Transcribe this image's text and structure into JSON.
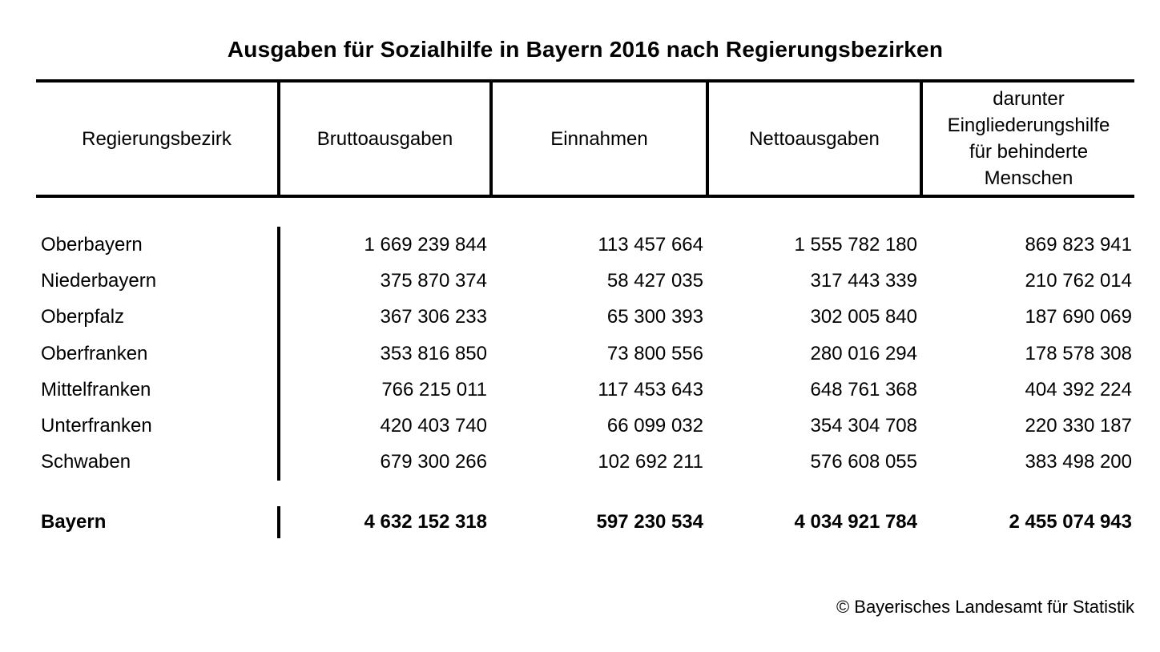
{
  "title": "Ausgaben für Sozialhilfe in Bayern 2016 nach Regierungsbezirken",
  "table": {
    "columns": [
      "Regierungsbezirk",
      "Bruttoausgaben",
      "Einnahmen",
      "Nettoausgaben",
      "darunter\nEingliederungshilfe\nfür behinderte\nMenschen"
    ],
    "rows": [
      {
        "region": "Oberbayern",
        "brutto": "1 669 239 844",
        "einnahmen": "113 457 664",
        "netto": "1 555 782 180",
        "eingliederung": "869 823 941"
      },
      {
        "region": "Niederbayern",
        "brutto": "375 870 374",
        "einnahmen": "58 427 035",
        "netto": "317 443 339",
        "eingliederung": "210 762 014"
      },
      {
        "region": "Oberpfalz",
        "brutto": "367 306 233",
        "einnahmen": "65 300 393",
        "netto": "302 005 840",
        "eingliederung": "187 690 069"
      },
      {
        "region": "Oberfranken",
        "brutto": "353 816 850",
        "einnahmen": "73 800 556",
        "netto": "280 016 294",
        "eingliederung": "178 578 308"
      },
      {
        "region": "Mittelfranken",
        "brutto": "766 215 011",
        "einnahmen": "117 453 643",
        "netto": "648 761 368",
        "eingliederung": "404 392 224"
      },
      {
        "region": "Unterfranken",
        "brutto": "420 403 740",
        "einnahmen": "66 099 032",
        "netto": "354 304 708",
        "eingliederung": "220 330 187"
      },
      {
        "region": "Schwaben",
        "brutto": "679 300 266",
        "einnahmen": "102 692 211",
        "netto": "576 608 055",
        "eingliederung": "383 498 200"
      }
    ],
    "total": {
      "region": "Bayern",
      "brutto": "4 632 152 318",
      "einnahmen": "597 230 534",
      "netto": "4 034 921 784",
      "eingliederung": "2 455 074 943"
    }
  },
  "footer": {
    "copyright": "© Bayerisches Landesamt für Statistik"
  },
  "colors": {
    "background": "#ffffff",
    "text": "#000000",
    "rule": "#000000"
  },
  "chart_data": {
    "type": "table",
    "title": "Ausgaben für Sozialhilfe in Bayern 2016 nach Regierungsbezirken",
    "columns": [
      "Regierungsbezirk",
      "Bruttoausgaben",
      "Einnahmen",
      "Nettoausgaben",
      "darunter Eingliederungshilfe für behinderte Menschen"
    ],
    "rows": [
      [
        "Oberbayern",
        1669239844,
        113457664,
        1555782180,
        869823941
      ],
      [
        "Niederbayern",
        375870374,
        58427035,
        317443339,
        210762014
      ],
      [
        "Oberpfalz",
        367306233,
        65300393,
        302005840,
        187690069
      ],
      [
        "Oberfranken",
        353816850,
        73800556,
        280016294,
        178578308
      ],
      [
        "Mittelfranken",
        766215011,
        117453643,
        648761368,
        404392224
      ],
      [
        "Unterfranken",
        420403740,
        66099032,
        354304708,
        220330187
      ],
      [
        "Schwaben",
        679300266,
        102692211,
        576608055,
        383498200
      ]
    ],
    "total_row": [
      "Bayern",
      4632152318,
      597230534,
      4034921784,
      2455074943
    ],
    "source": "© Bayerisches Landesamt für Statistik"
  }
}
